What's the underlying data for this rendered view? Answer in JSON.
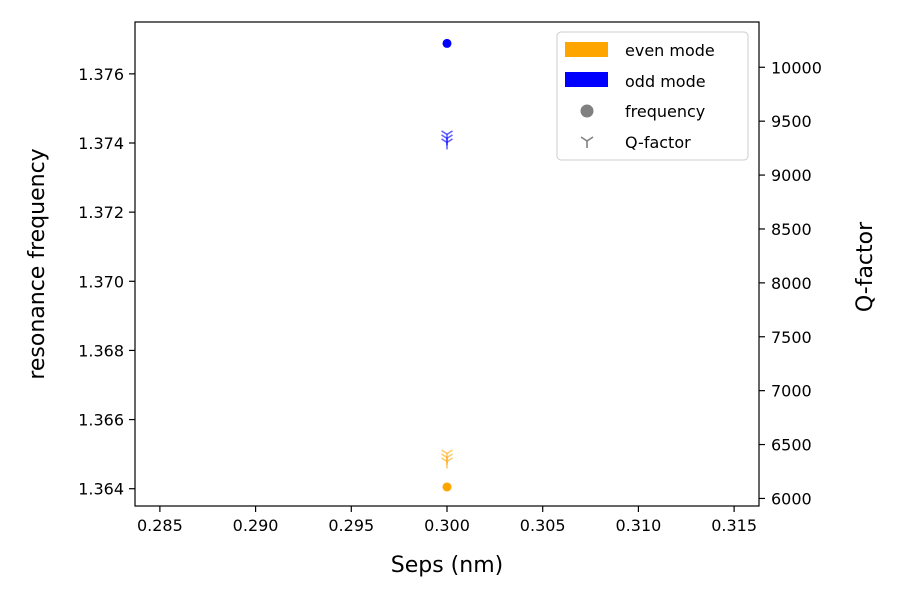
{
  "chart_data": {
    "type": "scatter",
    "title": "",
    "xlabel": "Seps (nm)",
    "ylabel": "resonance frequency",
    "y2label": "Q-factor",
    "xlim": [
      0.2837,
      0.3163
    ],
    "ylim": [
      1.3635,
      1.3775
    ],
    "y2lim": [
      5930,
      10420
    ],
    "x_ticks": [
      "0.285",
      "0.290",
      "0.295",
      "0.300",
      "0.305",
      "0.310",
      "0.315"
    ],
    "y_ticks": [
      "1.364",
      "1.366",
      "1.368",
      "1.370",
      "1.372",
      "1.374",
      "1.376"
    ],
    "y2_ticks": [
      "6000",
      "6500",
      "7000",
      "7500",
      "8000",
      "8500",
      "9000",
      "9500",
      "10000"
    ],
    "grid": false,
    "legend_position": "top-right",
    "legend": [
      {
        "label": "even mode",
        "kind": "patch",
        "color": "#ffa500"
      },
      {
        "label": "odd mode",
        "kind": "patch",
        "color": "#0000ff"
      },
      {
        "label": "frequency",
        "kind": "circle",
        "color": "#808080"
      },
      {
        "label": "Q-factor",
        "kind": "tri",
        "color": "#808080"
      }
    ],
    "series": [
      {
        "mode": "even",
        "measure": "frequency",
        "axis": "left",
        "marker": "circle",
        "color": "#ffa500",
        "points": [
          [
            0.3,
            1.36405
          ]
        ]
      },
      {
        "mode": "odd",
        "measure": "frequency",
        "axis": "left",
        "marker": "circle",
        "color": "#0000ff",
        "points": [
          [
            0.3,
            1.37688
          ]
        ]
      },
      {
        "mode": "even",
        "measure": "Q-factor",
        "axis": "right",
        "marker": "tri",
        "color": "#ffa500",
        "points": [
          [
            0.3,
            6380
          ]
        ]
      },
      {
        "mode": "odd",
        "measure": "Q-factor",
        "axis": "right",
        "marker": "tri",
        "color": "#0000ff",
        "points": [
          [
            0.3,
            9340
          ]
        ]
      }
    ]
  }
}
